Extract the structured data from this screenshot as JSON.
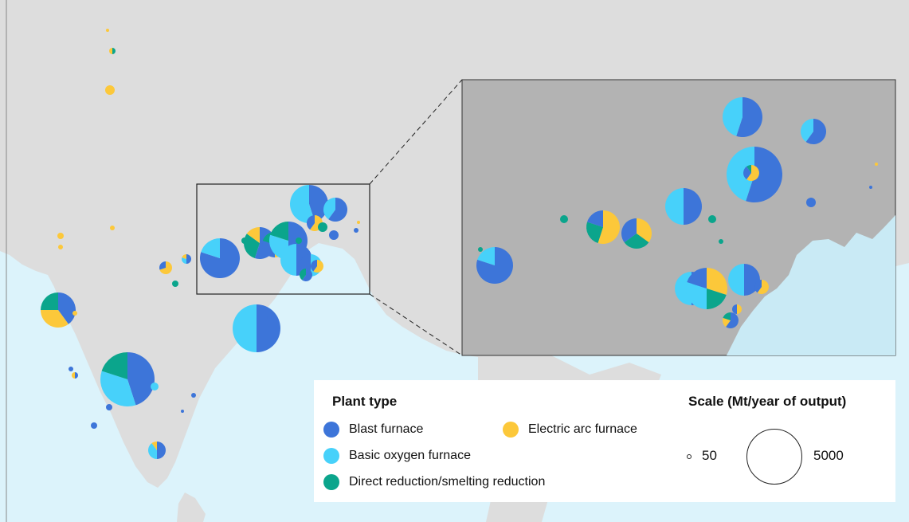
{
  "legend": {
    "plant_type_title": "Plant type",
    "scale_title": "Scale (Mt/year of output)",
    "items": [
      {
        "label": "Blast furnace",
        "color": "#3d75d9"
      },
      {
        "label": "Electric arc furnace",
        "color": "#fcc83a"
      },
      {
        "label": "Basic oxygen furnace",
        "color": "#47d1fa"
      },
      {
        "label": "Direct reduction/smelting reduction",
        "color": "#0ba58c"
      }
    ],
    "scale_min": "50",
    "scale_max": "5000"
  },
  "colors": {
    "land": "#dddddd",
    "sea": "#dcf3fb",
    "inset_land": "#b3b3b3",
    "inset_sea": "#c9eaf5",
    "blast": "#3d75d9",
    "bof": "#47d1fa",
    "eaf": "#fcc83a",
    "dri": "#0ba58c"
  }
}
